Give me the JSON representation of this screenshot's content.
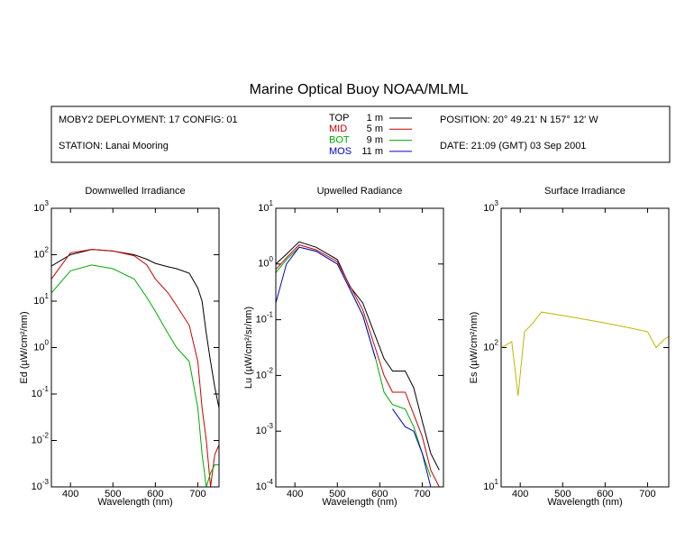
{
  "title": "Marine Optical Buoy NOAA/MLML",
  "info": {
    "deployment": "MOBY2 DEPLOYMENT: 17 CONFIG: 01",
    "station": "STATION: Lanai Mooring",
    "position": "POSITION: 20° 49.21' N   157° 12' W",
    "date": "DATE: 21:09 (GMT) 03 Sep 2001"
  },
  "legend": [
    {
      "name": "TOP",
      "depth": "1  m",
      "color": "#000000"
    },
    {
      "name": "MID",
      "depth": "5  m",
      "color": "#cc0000"
    },
    {
      "name": "BOT",
      "depth": "9  m",
      "color": "#00aa00"
    },
    {
      "name": "MOS",
      "depth": "11  m",
      "color": "#0000cc"
    }
  ],
  "chart_data": [
    {
      "type": "line",
      "title": "Downwelled Irradiance",
      "xlabel": "Wavelength (nm)",
      "ylabel": "Ed  (µW/cm²/nm)",
      "log_y": true,
      "xlim": [
        355,
        750
      ],
      "xticks": [
        400,
        500,
        600,
        700
      ],
      "ylim": [
        0.001,
        1000
      ],
      "yticks": [
        {
          "value": 0.001,
          "label": "10^-3"
        },
        {
          "value": 0.01,
          "label": "10^-2"
        },
        {
          "value": 0.1,
          "label": "10^-1"
        },
        {
          "value": 1,
          "label": "10^0"
        },
        {
          "value": 10,
          "label": "10^1"
        },
        {
          "value": 100,
          "label": "10^2"
        },
        {
          "value": 1000,
          "label": "10^3"
        }
      ],
      "x": [
        355,
        400,
        450,
        500,
        550,
        580,
        600,
        630,
        650,
        680,
        700,
        710,
        720,
        730,
        740,
        750
      ],
      "series": [
        {
          "color": "#000000",
          "values": [
            57,
            100,
            130,
            120,
            100,
            80,
            65,
            55,
            50,
            40,
            19,
            10,
            2,
            0.5,
            0.14,
            0.05
          ]
        },
        {
          "color": "#cc0000",
          "values": [
            30,
            110,
            130,
            120,
            95,
            60,
            30,
            15,
            8,
            3,
            0.5,
            0.05,
            0.01,
            0.001,
            0.005,
            0.008
          ]
        },
        {
          "color": "#00aa00",
          "values": [
            15,
            45,
            60,
            50,
            30,
            12,
            6,
            2,
            1,
            0.5,
            0.05,
            0.005,
            0.001,
            0.002,
            0.003,
            0.003
          ]
        }
      ]
    },
    {
      "type": "line",
      "title": "Upwelled Radiance",
      "xlabel": "Wavelength (nm)",
      "ylabel": "Lu  (µW/cm²/sr/nm)",
      "log_y": true,
      "xlim": [
        355,
        750
      ],
      "xticks": [
        400,
        500,
        600,
        700
      ],
      "ylim": [
        0.0001,
        10
      ],
      "yticks": [
        {
          "value": 0.0001,
          "label": "10^-4"
        },
        {
          "value": 0.001,
          "label": "10^-3"
        },
        {
          "value": 0.01,
          "label": "10^-2"
        },
        {
          "value": 0.1,
          "label": "10^-1"
        },
        {
          "value": 1,
          "label": "10^0"
        },
        {
          "value": 10,
          "label": "10^1"
        }
      ],
      "x": [
        355,
        380,
        410,
        450,
        500,
        530,
        560,
        590,
        610,
        630,
        660,
        680,
        700,
        720,
        740
      ],
      "series": [
        {
          "color": "#000000",
          "values": [
            1.0,
            1.5,
            2.5,
            2,
            1.2,
            0.39,
            0.2,
            0.05,
            0.02,
            0.012,
            0.012,
            0.006,
            0.0015,
            0.0004,
            0.0002
          ]
        },
        {
          "color": "#cc0000",
          "values": [
            0.8,
            1.3,
            2.2,
            1.8,
            1.1,
            0.4,
            0.15,
            0.03,
            0.01,
            0.005,
            0.005,
            0.002,
            0.0008,
            0.0002,
            0.0001
          ]
        },
        {
          "color": "#00aa00",
          "values": [
            0.7,
            1.2,
            2,
            1.7,
            1,
            0.35,
            0.12,
            0.02,
            0.005,
            0.003,
            0.0025,
            0.0012,
            0.0004,
            0.00015,
            null
          ]
        },
        {
          "color": "#0000cc",
          "values": [
            0.2,
            1,
            2,
            1.7,
            1,
            0.35,
            0.12,
            0.02,
            null,
            0.0025,
            0.0012,
            0.001,
            0.0004,
            0.0001,
            null
          ]
        }
      ]
    },
    {
      "type": "line",
      "title": "Surface Irradiance",
      "xlabel": "Wavelength (nm)",
      "ylabel": "Es  (µW/cm²/nm)",
      "log_y": true,
      "xlim": [
        355,
        750
      ],
      "xticks": [
        400,
        500,
        600,
        700
      ],
      "ylim": [
        10,
        1000
      ],
      "yticks": [
        {
          "value": 10,
          "label": "10^1"
        },
        {
          "value": 100,
          "label": "10^2"
        },
        {
          "value": 1000,
          "label": "10^3"
        }
      ],
      "x": [
        355,
        380,
        395,
        410,
        430,
        450,
        500,
        550,
        600,
        650,
        700,
        720,
        740,
        750
      ],
      "series": [
        {
          "color": "#c0b800",
          "values": [
            100,
            110,
            45,
            130,
            150,
            180,
            170,
            160,
            150,
            140,
            130,
            100,
            115,
            120
          ]
        }
      ]
    }
  ]
}
